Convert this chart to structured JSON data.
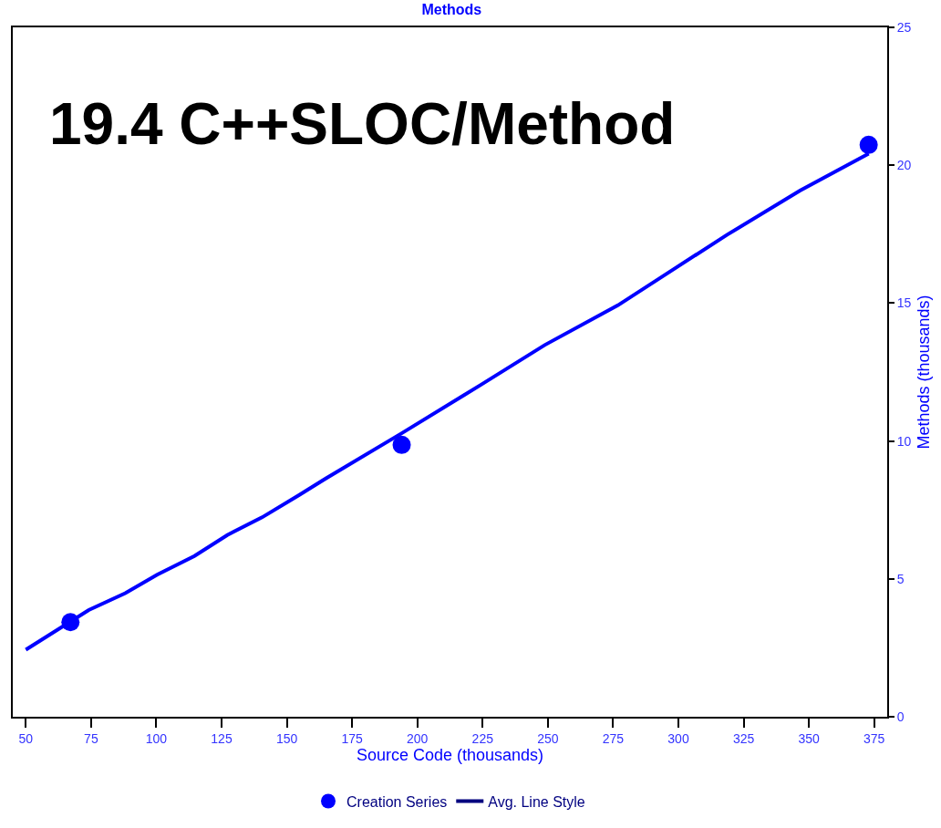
{
  "chart_data": {
    "type": "scatter",
    "title": "Methods",
    "xlabel": "Source Code (thousands)",
    "ylabel": "Methods (thousands)",
    "annotations": [
      "19.4 C++SLOC/Method"
    ],
    "series": [
      {
        "name": "Creation Series",
        "marker": "circle",
        "color": "#0000ff",
        "x": [
          67.1,
          194.0,
          372.9
        ],
        "values": [
          3.43,
          9.86,
          20.74
        ]
      },
      {
        "type": "line",
        "marker": "none",
        "color": "#0000ff",
        "x": [
          50,
          74.1,
          88.1,
          100.3,
          114.6,
          127.2,
          140.5,
          154.5,
          164.9,
          194,
          224.4,
          248.8,
          276.8,
          297.7,
          318.7,
          346.6,
          372.9
        ],
        "values": [
          2.43,
          3.87,
          4.48,
          5.15,
          5.83,
          6.59,
          7.23,
          8.03,
          8.64,
          10.28,
          12.04,
          13.48,
          14.92,
          16.2,
          17.48,
          19.08,
          20.42
        ]
      },
      {
        "name": "Avg. Line Style",
        "type": "line",
        "color": "#00007f"
      }
    ],
    "xlim": [
      45,
      380
    ],
    "xticks": [
      50,
      75,
      100,
      125,
      150,
      175,
      200,
      225,
      250,
      275,
      300,
      325,
      350,
      375
    ],
    "ylim": [
      0,
      25
    ],
    "yticks": [
      0,
      5,
      10,
      15,
      20,
      25
    ],
    "legend": "bottom",
    "line_style": "solid"
  }
}
